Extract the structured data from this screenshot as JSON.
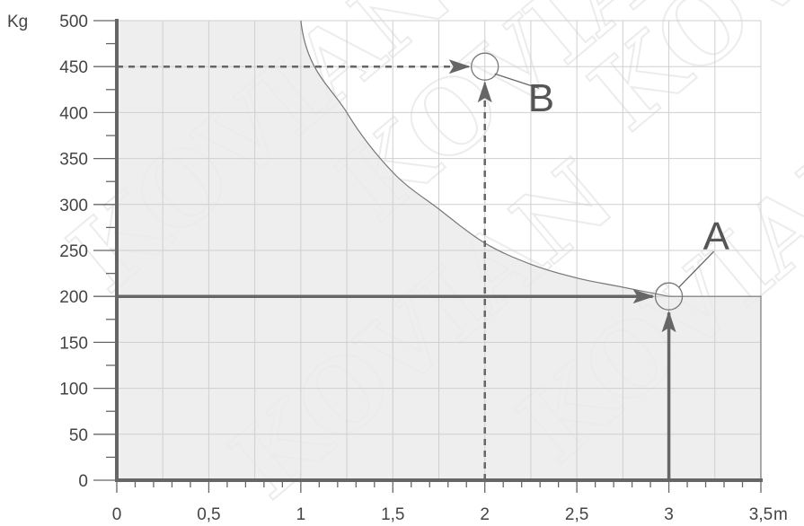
{
  "chart_data": {
    "type": "area",
    "title": "",
    "xlabel": "",
    "ylabel": "",
    "x_unit": "m",
    "y_unit": "Kg",
    "xlim": [
      0,
      3.5
    ],
    "ylim": [
      0,
      500
    ],
    "x_ticks": [
      {
        "value": 0,
        "label": "0"
      },
      {
        "value": 0.5,
        "label": "0,5"
      },
      {
        "value": 1,
        "label": "1"
      },
      {
        "value": 1.5,
        "label": "1,5"
      },
      {
        "value": 2,
        "label": "2"
      },
      {
        "value": 2.5,
        "label": "2,5"
      },
      {
        "value": 3,
        "label": "3"
      },
      {
        "value": 3.5,
        "label": "3,5"
      }
    ],
    "y_ticks": [
      0,
      50,
      100,
      150,
      200,
      250,
      300,
      350,
      400,
      450,
      500
    ],
    "grid": true,
    "series": [
      {
        "x": [
          0,
          1,
          1.25,
          1.5,
          1.75,
          2,
          2.25,
          2.5,
          2.75,
          3,
          3.5
        ],
        "y": [
          500,
          500,
          400,
          335,
          295,
          258,
          235,
          220,
          210,
          200,
          200
        ]
      }
    ],
    "annotations": [
      {
        "label": "A",
        "x": 3,
        "y": 200,
        "style": "solid"
      },
      {
        "label": "B",
        "x": 2,
        "y": 450,
        "style": "dashed"
      }
    ],
    "watermark": "KOVIAN",
    "colors": {
      "fill": "#ebebeb",
      "axis": "#666666",
      "grid": "#cfcfcf",
      "curve": "#777777"
    }
  }
}
